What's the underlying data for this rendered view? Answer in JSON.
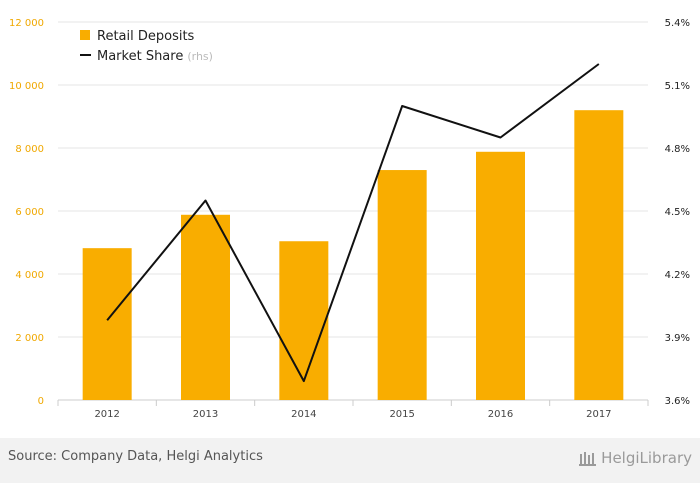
{
  "chart_data": {
    "type": "bar",
    "categories": [
      "2012",
      "2013",
      "2014",
      "2015",
      "2016",
      "2017"
    ],
    "series": [
      {
        "name": "Retail Deposits",
        "type": "bar",
        "axis": "left",
        "values": [
          4820,
          5880,
          5040,
          7300,
          7880,
          9200
        ]
      },
      {
        "name": "Market Share",
        "legend_suffix": "(rhs)",
        "type": "line",
        "axis": "right",
        "values": [
          3.98,
          4.55,
          3.69,
          5.0,
          4.85,
          5.2
        ]
      }
    ],
    "left_axis": {
      "min": 0,
      "max": 12000,
      "ticks": [
        0,
        2000,
        4000,
        6000,
        8000,
        10000,
        12000
      ],
      "tick_labels": [
        "0",
        "2 000",
        "4 000",
        "6 000",
        "8 000",
        "10 000",
        "12 000"
      ]
    },
    "right_axis": {
      "min": 3.6,
      "max": 5.4,
      "ticks": [
        3.6,
        3.9,
        4.2,
        4.5,
        4.8,
        5.1,
        5.4
      ],
      "tick_labels": [
        "3.6%",
        "3.9%",
        "4.2%",
        "4.5%",
        "4.8%",
        "5.1%",
        "5.4%"
      ]
    },
    "grid": true,
    "legend_position": "top-left",
    "colors": {
      "bar": "#f9ad00",
      "line": "#111111",
      "left_axis_text": "#f0a800",
      "right_axis_text": "#222222"
    }
  },
  "footer": {
    "source": "Source: Company Data, Helgi Analytics",
    "brand": "HelgiLibrary"
  }
}
